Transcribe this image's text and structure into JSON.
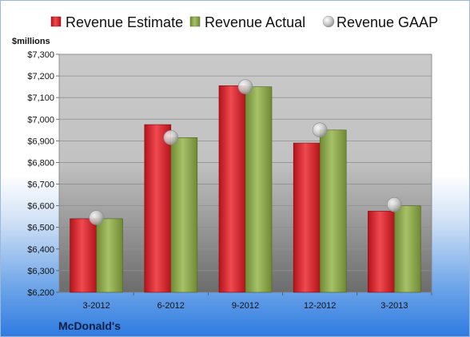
{
  "chart_data": {
    "type": "bar",
    "categories": [
      "3-2012",
      "6-2012",
      "9-2012",
      "12-2012",
      "3-2013"
    ],
    "series": [
      {
        "name": "Revenue Estimate",
        "values": [
          6540,
          6975,
          7155,
          6890,
          6575
        ],
        "color": "#d9272e"
      },
      {
        "name": "Revenue Actual",
        "values": [
          6540,
          6915,
          7150,
          6950,
          6600
        ],
        "color": "#8aa64b"
      }
    ],
    "points": {
      "name": "Revenue GAAP",
      "values": [
        6545,
        6915,
        7150,
        6950,
        6605
      ],
      "color": "#c8c8c8"
    },
    "ylabel": "$millions",
    "ylim": [
      6200,
      7300
    ],
    "yticks": [
      "$6,200",
      "$6,300",
      "$6,400",
      "$6,500",
      "$6,600",
      "$6,700",
      "$6,800",
      "$6,900",
      "$7,000",
      "$7,100",
      "$7,200",
      "$7,300"
    ],
    "grid": true,
    "legend": "top",
    "company": "McDonald's"
  }
}
